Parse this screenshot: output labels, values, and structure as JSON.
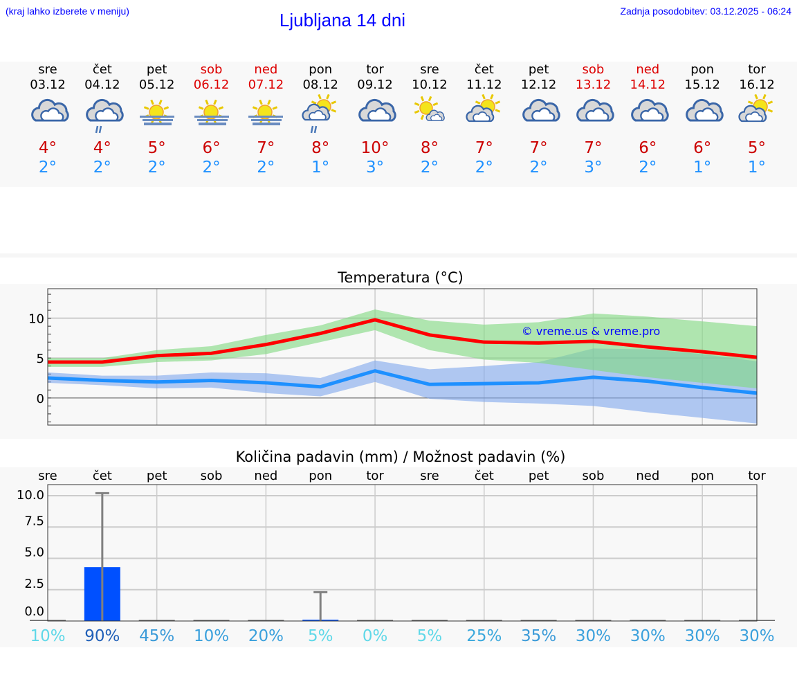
{
  "header": {
    "hint": "(kraj lahko izberete v meniju)",
    "title": "Ljubljana 14 dni",
    "updated": "Zadnja posodobitev: 03.12.2025 - 06:24"
  },
  "days": [
    {
      "name": "sre",
      "date": "03.12",
      "weekend": false,
      "icon": "cloudy-icon",
      "max": "4°",
      "min": "2°"
    },
    {
      "name": "čet",
      "date": "04.12",
      "weekend": false,
      "icon": "cloudy-rain-icon",
      "max": "4°",
      "min": "2°"
    },
    {
      "name": "pet",
      "date": "05.12",
      "weekend": false,
      "icon": "sun-fog-icon",
      "max": "5°",
      "min": "2°"
    },
    {
      "name": "sob",
      "date": "06.12",
      "weekend": true,
      "icon": "sun-fog-icon",
      "max": "6°",
      "min": "2°"
    },
    {
      "name": "ned",
      "date": "07.12",
      "weekend": true,
      "icon": "sun-fog-icon",
      "max": "7°",
      "min": "2°"
    },
    {
      "name": "pon",
      "date": "08.12",
      "weekend": false,
      "icon": "partly-cloudy-rain-icon",
      "max": "8°",
      "min": "1°"
    },
    {
      "name": "tor",
      "date": "09.12",
      "weekend": false,
      "icon": "cloudy-icon",
      "max": "10°",
      "min": "3°"
    },
    {
      "name": "sre",
      "date": "10.12",
      "weekend": false,
      "icon": "sun-small-cloud-icon",
      "max": "8°",
      "min": "2°"
    },
    {
      "name": "čet",
      "date": "11.12",
      "weekend": false,
      "icon": "partly-cloudy-icon",
      "max": "7°",
      "min": "2°"
    },
    {
      "name": "pet",
      "date": "12.12",
      "weekend": false,
      "icon": "cloudy-icon",
      "max": "7°",
      "min": "2°"
    },
    {
      "name": "sob",
      "date": "13.12",
      "weekend": true,
      "icon": "cloudy-icon",
      "max": "7°",
      "min": "3°"
    },
    {
      "name": "ned",
      "date": "14.12",
      "weekend": true,
      "icon": "cloudy-icon",
      "max": "6°",
      "min": "2°"
    },
    {
      "name": "pon",
      "date": "15.12",
      "weekend": false,
      "icon": "cloudy-icon",
      "max": "6°",
      "min": "1°"
    },
    {
      "name": "tor",
      "date": "16.12",
      "weekend": false,
      "icon": "partly-cloudy-icon",
      "max": "5°",
      "min": "1°"
    }
  ],
  "chart_data": [
    {
      "type": "line",
      "title": "Temperatura (°C)",
      "watermark": "© vreme.us & vreme.pro",
      "ylim": [
        -3.4,
        13.7
      ],
      "yticks": [
        0,
        5,
        10
      ],
      "x": [
        0,
        1,
        2,
        3,
        4,
        5,
        6,
        7,
        8,
        9,
        10,
        11,
        12,
        13
      ],
      "series": [
        {
          "name": "max",
          "color": "#ff0000",
          "values": [
            4.5,
            4.5,
            5.3,
            5.6,
            6.7,
            8.1,
            9.8,
            7.9,
            7.0,
            6.9,
            7.1,
            6.4,
            5.8,
            5.1
          ],
          "band_upper": [
            5.0,
            5.0,
            6.0,
            6.5,
            7.9,
            9.1,
            11.1,
            9.7,
            9.2,
            9.5,
            10.6,
            10.2,
            9.6,
            9.0
          ],
          "band_lower": [
            3.9,
            3.9,
            4.5,
            4.7,
            5.5,
            7.0,
            8.5,
            6.0,
            4.8,
            4.4,
            3.5,
            2.6,
            1.9,
            1.2
          ],
          "band_color": "#7fd87f"
        },
        {
          "name": "min",
          "color": "#1e90ff",
          "values": [
            2.5,
            2.2,
            2.0,
            2.2,
            1.9,
            1.4,
            3.4,
            1.7,
            1.8,
            1.9,
            2.6,
            2.1,
            1.3,
            0.6
          ],
          "band_upper": [
            3.2,
            2.8,
            2.8,
            3.2,
            3.1,
            2.5,
            4.7,
            3.6,
            4.0,
            4.5,
            6.2,
            6.1,
            5.5,
            4.6
          ],
          "band_lower": [
            1.9,
            1.6,
            1.2,
            1.3,
            0.6,
            0.2,
            2.0,
            -0.1,
            -0.5,
            -0.7,
            -1.0,
            -1.8,
            -2.5,
            -3.2
          ],
          "band_color": "#7fa6ec"
        }
      ]
    },
    {
      "type": "bar",
      "title": "Količina padavin (mm) / Možnost padavin (%)",
      "ylim": [
        0,
        10.5
      ],
      "yticks": [
        "0.0",
        "2.5",
        "5.0",
        "7.5",
        "10.0"
      ],
      "categories": [
        "sre",
        "čet",
        "pet",
        "sob",
        "ned",
        "pon",
        "tor",
        "sre",
        "čet",
        "pet",
        "sob",
        "ned",
        "pon",
        "tor"
      ],
      "values": [
        0,
        4.3,
        0,
        0,
        0,
        0.1,
        0,
        0,
        0,
        0,
        0,
        0,
        0,
        0
      ],
      "error_max": [
        0,
        10.2,
        0,
        0,
        0,
        2.3,
        0,
        0,
        0,
        0,
        0,
        0,
        0,
        0
      ],
      "probability": [
        "10%",
        "90%",
        "45%",
        "10%",
        "20%",
        "5%",
        "0%",
        "5%",
        "25%",
        "35%",
        "30%",
        "30%",
        "30%",
        "30%"
      ],
      "probability_colors": [
        "#5fd8e8",
        "#1f5fb8",
        "#3a9ad8",
        "#3aa0dc",
        "#3aa0dc",
        "#5fd8e8",
        "#5fd8e8",
        "#5fd8e8",
        "#3aa8dc",
        "#3a9ad8",
        "#3aa0dc",
        "#3aa0dc",
        "#3aa0dc",
        "#3aa0dc"
      ],
      "bar_color": "#0050ff"
    }
  ]
}
